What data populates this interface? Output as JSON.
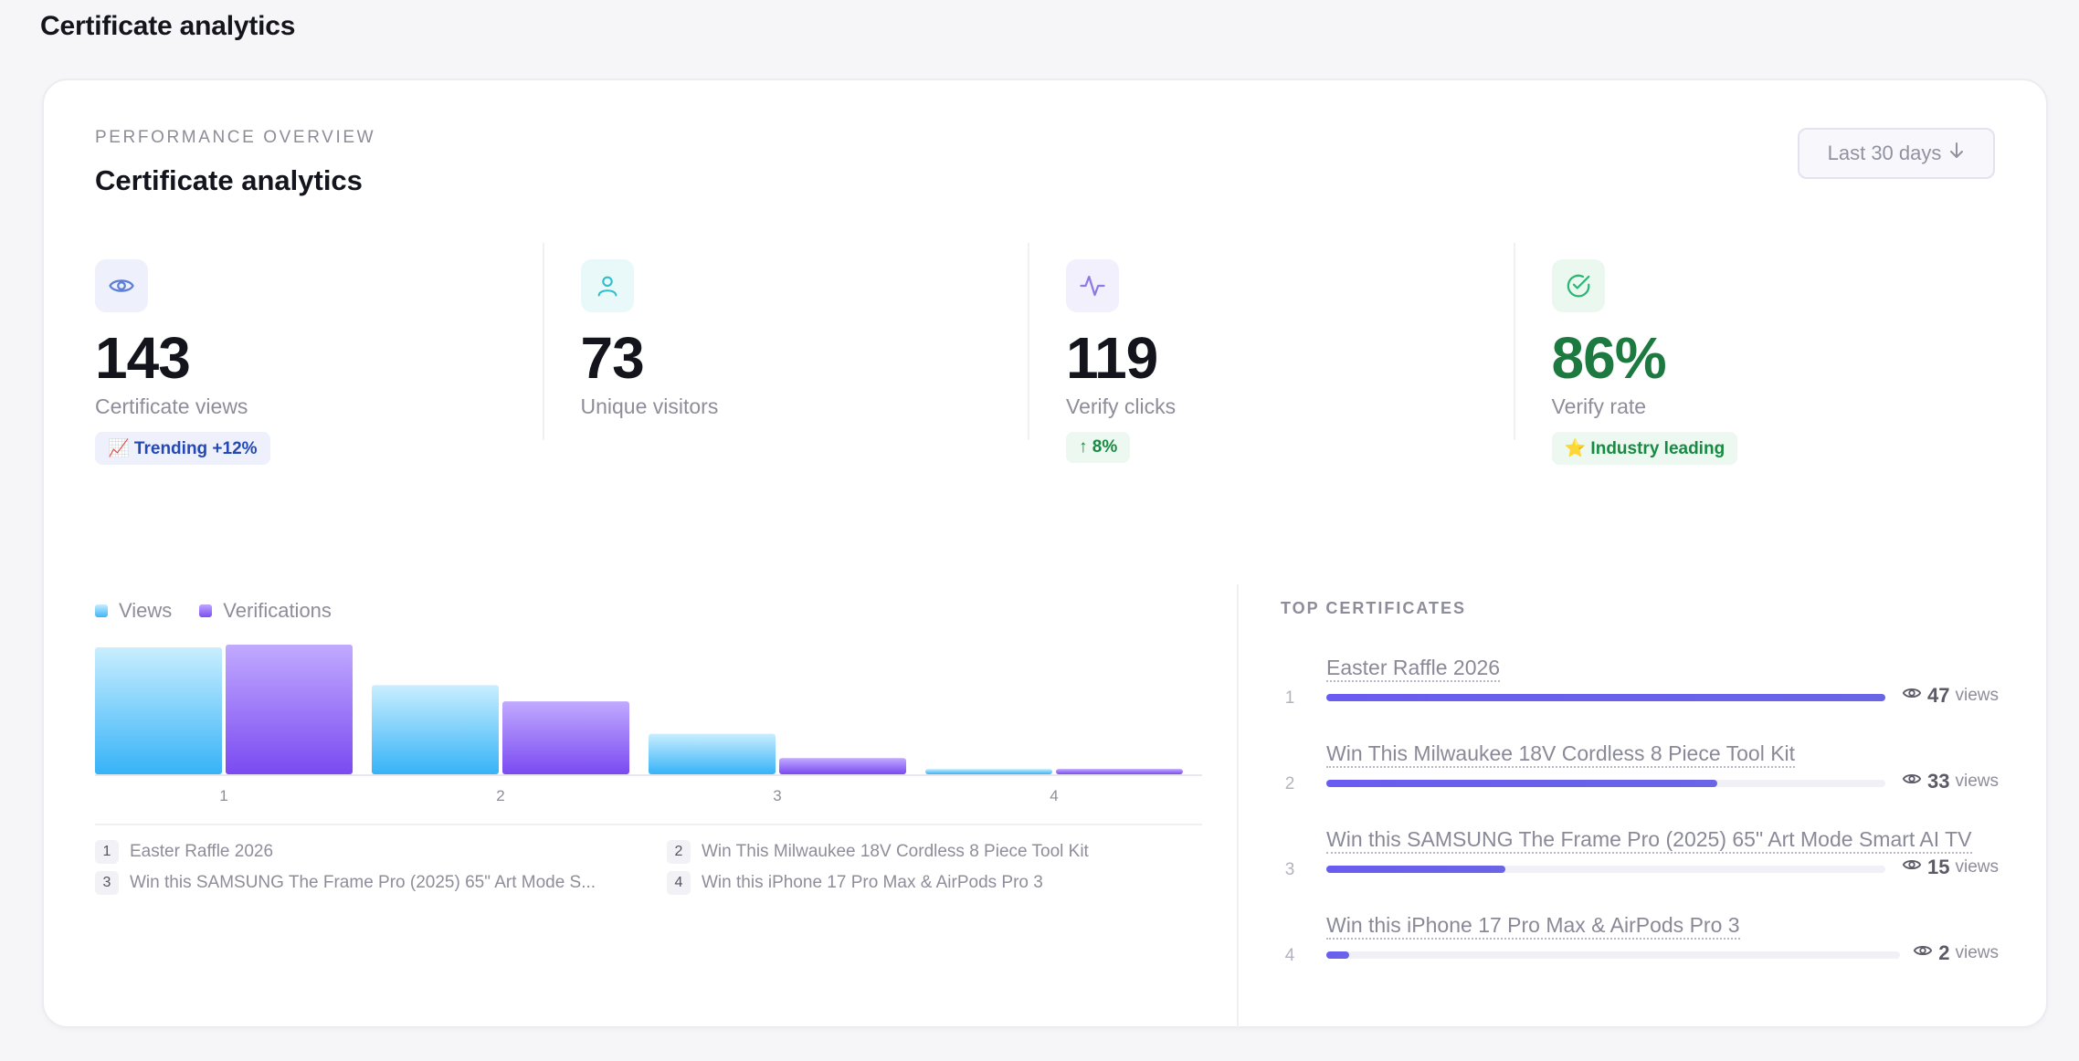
{
  "page": {
    "title": "Certificate analytics"
  },
  "card": {
    "eyebrow": "PERFORMANCE OVERVIEW",
    "title": "Certificate analytics",
    "range_label": "Last 30 days"
  },
  "kpis": [
    {
      "icon": "eye-icon",
      "value": "143",
      "label": "Certificate views",
      "badge": "📈 Trending +12%",
      "icon_bg": "#eef0fb",
      "icon_color": "#5b7fd8",
      "badge_bg": "#eef1fc",
      "badge_color": "#2348b8",
      "value_color": "#14141c"
    },
    {
      "icon": "user-icon",
      "value": "73",
      "label": "Unique visitors",
      "badge": "",
      "icon_bg": "#e9f8f9",
      "icon_color": "#2cbfcc",
      "value_color": "#14141c"
    },
    {
      "icon": "activity-icon",
      "value": "119",
      "label": "Verify clicks",
      "badge": "↑ 8%",
      "icon_bg": "#f3f0fd",
      "icon_color": "#8f79e6",
      "badge_bg": "#ecf8f0",
      "badge_color": "#178a43",
      "value_color": "#14141c"
    },
    {
      "icon": "check-circle-icon",
      "value": "86%",
      "label": "Verify rate",
      "badge": "⭐ Industry leading",
      "icon_bg": "#eaf8f0",
      "icon_color": "#2bb673",
      "badge_bg": "#ecf8f0",
      "badge_color": "#178a43",
      "value_color": "#1c7a40"
    }
  ],
  "legend": {
    "views": "Views",
    "verifications": "Verifications"
  },
  "chart_data": {
    "type": "bar",
    "categories": [
      "1",
      "2",
      "3",
      "4"
    ],
    "series": [
      {
        "name": "Views",
        "values": [
          47,
          33,
          15,
          2
        ]
      },
      {
        "name": "Verifications",
        "values": [
          48,
          27,
          6,
          2
        ]
      }
    ],
    "ylim": [
      0,
      48
    ],
    "colors": {
      "Views": [
        "#c6ecff",
        "#3bb6f8"
      ],
      "Verifications": [
        "#bea6ff",
        "#7b4ef2"
      ]
    },
    "grid": false,
    "legend": "top-left"
  },
  "keys": [
    {
      "num": "1",
      "text": "Easter Raffle 2026"
    },
    {
      "num": "2",
      "text": "Win This Milwaukee 18V Cordless 8 Piece Tool Kit"
    },
    {
      "num": "3",
      "text": "Win this SAMSUNG The Frame Pro (2025) 65\" Art Mode S..."
    },
    {
      "num": "4",
      "text": "Win this iPhone 17 Pro Max & AirPods Pro 3"
    }
  ],
  "top": {
    "heading": "TOP CERTIFICATES",
    "items": [
      {
        "rank": "1",
        "name": "Easter Raffle 2026",
        "views": "47",
        "unit": "views",
        "fraction": 1.0
      },
      {
        "rank": "2",
        "name": "Win This Milwaukee 18V Cordless 8 Piece Tool Kit",
        "views": "33",
        "unit": "views",
        "fraction": 0.7
      },
      {
        "rank": "3",
        "name": "Win this SAMSUNG The Frame Pro (2025) 65\" Art Mode Smart AI TV",
        "views": "15",
        "unit": "views",
        "fraction": 0.32
      },
      {
        "rank": "4",
        "name": "Win this iPhone 17 Pro Max & AirPods Pro 3",
        "views": "2",
        "unit": "views",
        "fraction": 0.04
      }
    ]
  }
}
